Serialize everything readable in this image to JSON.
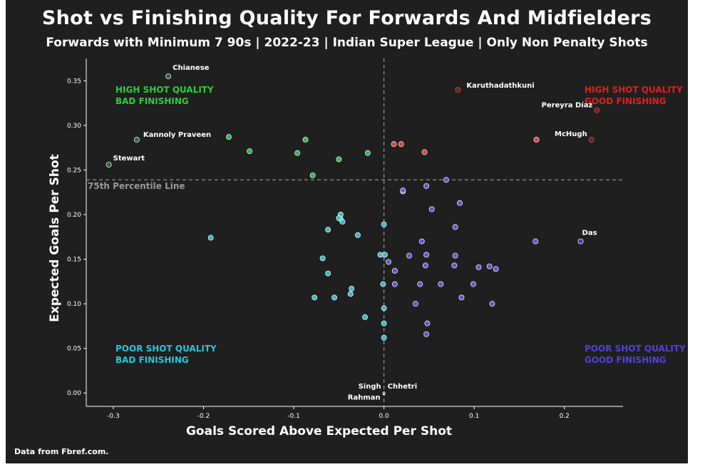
{
  "title": "Shot vs Finishing Quality For Forwards And Midfielders",
  "subtitle": "Forwards with Minimum 7 90s | 2022-23 | Indian Super League | Only Non Penalty Shots",
  "source": "Data from Fbref.com.",
  "colors": {
    "background": "#1f1f1f",
    "high_quality_bad": "#3fbf5a",
    "high_quality_good": "#e84545",
    "poor_quality_bad": "#3ec6d6",
    "poor_quality_good": "#6a5ae0",
    "dark_green": "#2f6b3c",
    "dark_red": "#6b2a2a",
    "dark_blue": "#4a3fa8"
  },
  "chart_data": {
    "type": "scatter",
    "xlabel": "Goals Scored Above Expected Per Shot",
    "ylabel": "Expected Goals Per Shot",
    "xlim": [
      -0.33,
      0.265
    ],
    "ylim": [
      -0.015,
      0.375
    ],
    "x_ticks": [
      "-0.3",
      "-0.2",
      "-0.1",
      "0.0",
      "0.1",
      "0.2"
    ],
    "y_ticks": [
      "0.00",
      "0.05",
      "0.10",
      "0.15",
      "0.20",
      "0.25",
      "0.30",
      "0.35"
    ],
    "grid": false,
    "reference_lines": {
      "x": 0.0,
      "y": 0.239,
      "y_label": "75th Percentile Line"
    },
    "quadrant_labels": [
      {
        "line1": "HIGH SHOT QUALITY",
        "line2": "BAD FINISHING",
        "color": "#2ecc40"
      },
      {
        "line1": "HIGH SHOT QUALITY",
        "line2": "GOOD FINISHING",
        "color": "#e02020"
      },
      {
        "line1": "POOR SHOT QUALITY",
        "line2": "BAD FINISHING",
        "color": "#22c8dc"
      },
      {
        "line1": "POOR SHOT QUALITY",
        "line2": "GOOD FINISHING",
        "color": "#5540dd"
      }
    ],
    "points": [
      {
        "x": -0.239,
        "y": 0.355,
        "label": "Chianese",
        "group": "hq_bad_dark"
      },
      {
        "x": -0.274,
        "y": 0.284,
        "label": "Kannoly Praveen",
        "group": "hq_bad_dark"
      },
      {
        "x": -0.305,
        "y": 0.256,
        "label": "Stewart",
        "group": "hq_bad_dark"
      },
      {
        "x": -0.172,
        "y": 0.287,
        "group": "hq_bad"
      },
      {
        "x": -0.149,
        "y": 0.271,
        "group": "hq_bad"
      },
      {
        "x": -0.087,
        "y": 0.284,
        "group": "hq_bad"
      },
      {
        "x": -0.096,
        "y": 0.269,
        "group": "hq_bad"
      },
      {
        "x": -0.05,
        "y": 0.262,
        "group": "hq_bad"
      },
      {
        "x": -0.018,
        "y": 0.269,
        "group": "hq_bad"
      },
      {
        "x": -0.079,
        "y": 0.244,
        "group": "hq_bad"
      },
      {
        "x": 0.082,
        "y": 0.34,
        "label": "Karuthadathkuni",
        "group": "hq_good_dark"
      },
      {
        "x": 0.236,
        "y": 0.317,
        "label": "Pereyra Díaz",
        "group": "hq_good_dark"
      },
      {
        "x": 0.23,
        "y": 0.284,
        "label": "McHugh",
        "group": "hq_good_dark"
      },
      {
        "x": 0.169,
        "y": 0.284,
        "group": "hq_good"
      },
      {
        "x": 0.011,
        "y": 0.279,
        "group": "hq_good"
      },
      {
        "x": 0.019,
        "y": 0.279,
        "group": "hq_good"
      },
      {
        "x": 0.045,
        "y": 0.27,
        "group": "hq_good"
      },
      {
        "x": -0.192,
        "y": 0.174,
        "group": "pq_bad"
      },
      {
        "x": -0.048,
        "y": 0.2,
        "group": "pq_bad"
      },
      {
        "x": -0.048,
        "y": 0.195,
        "group": "pq_bad"
      },
      {
        "x": -0.05,
        "y": 0.196,
        "group": "pq_bad"
      },
      {
        "x": -0.046,
        "y": 0.192,
        "group": "pq_bad"
      },
      {
        "x": -0.062,
        "y": 0.183,
        "group": "pq_bad"
      },
      {
        "x": -0.029,
        "y": 0.177,
        "group": "pq_bad"
      },
      {
        "x": 0.0,
        "y": 0.189,
        "group": "pq_bad"
      },
      {
        "x": -0.004,
        "y": 0.155,
        "group": "pq_bad"
      },
      {
        "x": 0.001,
        "y": 0.155,
        "group": "pq_bad"
      },
      {
        "x": -0.068,
        "y": 0.151,
        "group": "pq_bad"
      },
      {
        "x": -0.062,
        "y": 0.134,
        "group": "pq_bad"
      },
      {
        "x": -0.036,
        "y": 0.117,
        "group": "pq_bad"
      },
      {
        "x": -0.037,
        "y": 0.111,
        "group": "pq_bad"
      },
      {
        "x": -0.077,
        "y": 0.107,
        "group": "pq_bad"
      },
      {
        "x": -0.055,
        "y": 0.107,
        "group": "pq_bad"
      },
      {
        "x": -0.001,
        "y": 0.122,
        "group": "pq_bad"
      },
      {
        "x": 0.0,
        "y": 0.095,
        "group": "pq_bad"
      },
      {
        "x": -0.021,
        "y": 0.085,
        "group": "pq_bad"
      },
      {
        "x": 0.0,
        "y": 0.078,
        "group": "pq_bad"
      },
      {
        "x": 0.0,
        "y": 0.062,
        "group": "pq_bad"
      },
      {
        "x": 0.0,
        "y": 0.0,
        "label": "Singh",
        "group": "pq_bad_dark"
      },
      {
        "x": 0.0,
        "y": -0.001,
        "label": "Rahman",
        "group": "pq_bad_dark"
      },
      {
        "x": 0.0,
        "y": 0.0,
        "label": "Chhetri",
        "group": "pq_good_dark"
      },
      {
        "x": 0.218,
        "y": 0.17,
        "label": "Das",
        "group": "pq_good_dark"
      },
      {
        "x": 0.069,
        "y": 0.239,
        "group": "pq_good"
      },
      {
        "x": 0.047,
        "y": 0.232,
        "group": "pq_good"
      },
      {
        "x": 0.021,
        "y": 0.226,
        "group": "pq_good"
      },
      {
        "x": 0.021,
        "y": 0.227,
        "group": "pq_good"
      },
      {
        "x": 0.084,
        "y": 0.213,
        "group": "pq_good"
      },
      {
        "x": 0.053,
        "y": 0.206,
        "group": "pq_good"
      },
      {
        "x": 0.079,
        "y": 0.186,
        "group": "pq_good"
      },
      {
        "x": 0.042,
        "y": 0.17,
        "group": "pq_good"
      },
      {
        "x": 0.168,
        "y": 0.17,
        "group": "pq_good"
      },
      {
        "x": 0.005,
        "y": 0.147,
        "group": "pq_good"
      },
      {
        "x": 0.028,
        "y": 0.154,
        "group": "pq_good"
      },
      {
        "x": 0.047,
        "y": 0.155,
        "group": "pq_good"
      },
      {
        "x": 0.079,
        "y": 0.154,
        "group": "pq_good"
      },
      {
        "x": 0.012,
        "y": 0.137,
        "group": "pq_good"
      },
      {
        "x": 0.046,
        "y": 0.143,
        "group": "pq_good"
      },
      {
        "x": 0.078,
        "y": 0.143,
        "group": "pq_good"
      },
      {
        "x": 0.105,
        "y": 0.141,
        "group": "pq_good"
      },
      {
        "x": 0.117,
        "y": 0.142,
        "group": "pq_good"
      },
      {
        "x": 0.124,
        "y": 0.139,
        "group": "pq_good"
      },
      {
        "x": 0.012,
        "y": 0.122,
        "group": "pq_good"
      },
      {
        "x": 0.04,
        "y": 0.122,
        "group": "pq_good"
      },
      {
        "x": 0.063,
        "y": 0.122,
        "group": "pq_good"
      },
      {
        "x": 0.099,
        "y": 0.122,
        "group": "pq_good"
      },
      {
        "x": 0.086,
        "y": 0.107,
        "group": "pq_good"
      },
      {
        "x": 0.035,
        "y": 0.1,
        "group": "pq_good"
      },
      {
        "x": 0.12,
        "y": 0.1,
        "group": "pq_good"
      },
      {
        "x": 0.048,
        "y": 0.078,
        "group": "pq_good"
      },
      {
        "x": 0.047,
        "y": 0.066,
        "group": "pq_good"
      }
    ]
  }
}
